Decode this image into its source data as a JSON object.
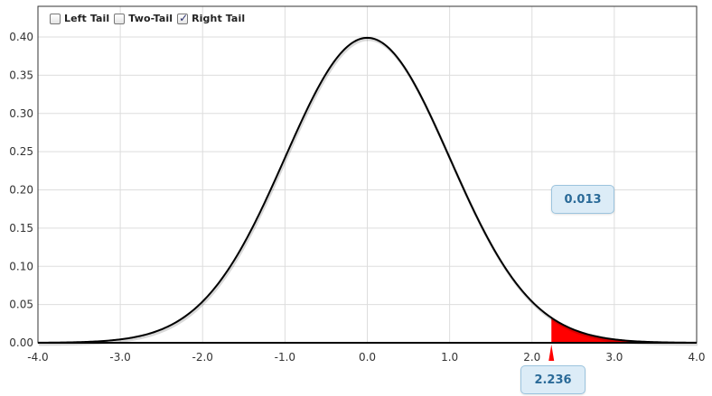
{
  "controls": {
    "left_tail": {
      "label": "Left Tail",
      "checked": false
    },
    "two_tail": {
      "label": "Two-Tail",
      "checked": false
    },
    "right_tail": {
      "label": "Right Tail",
      "checked": true
    }
  },
  "colors": {
    "curve": "#000000",
    "shade": "#ff0000",
    "grid": "#dddddd",
    "bubble_text": "#2a6a98"
  },
  "chart_data": {
    "type": "area",
    "distribution": "standard normal",
    "xlim": [
      -4.0,
      4.0
    ],
    "ylim": [
      0.0,
      0.4
    ],
    "x_ticks": [
      "-4.0",
      "-3.0",
      "-2.0",
      "-1.0",
      "0.0",
      "1.0",
      "2.0",
      "3.0",
      "4.0"
    ],
    "y_ticks": [
      "0.00",
      "0.05",
      "0.10",
      "0.15",
      "0.20",
      "0.25",
      "0.30",
      "0.35",
      "0.40"
    ],
    "grid": true,
    "shaded_region": {
      "tail": "right",
      "from": 2.236,
      "to": 4.0
    },
    "critical_value": "2.236",
    "tail_probability": "0.013"
  }
}
